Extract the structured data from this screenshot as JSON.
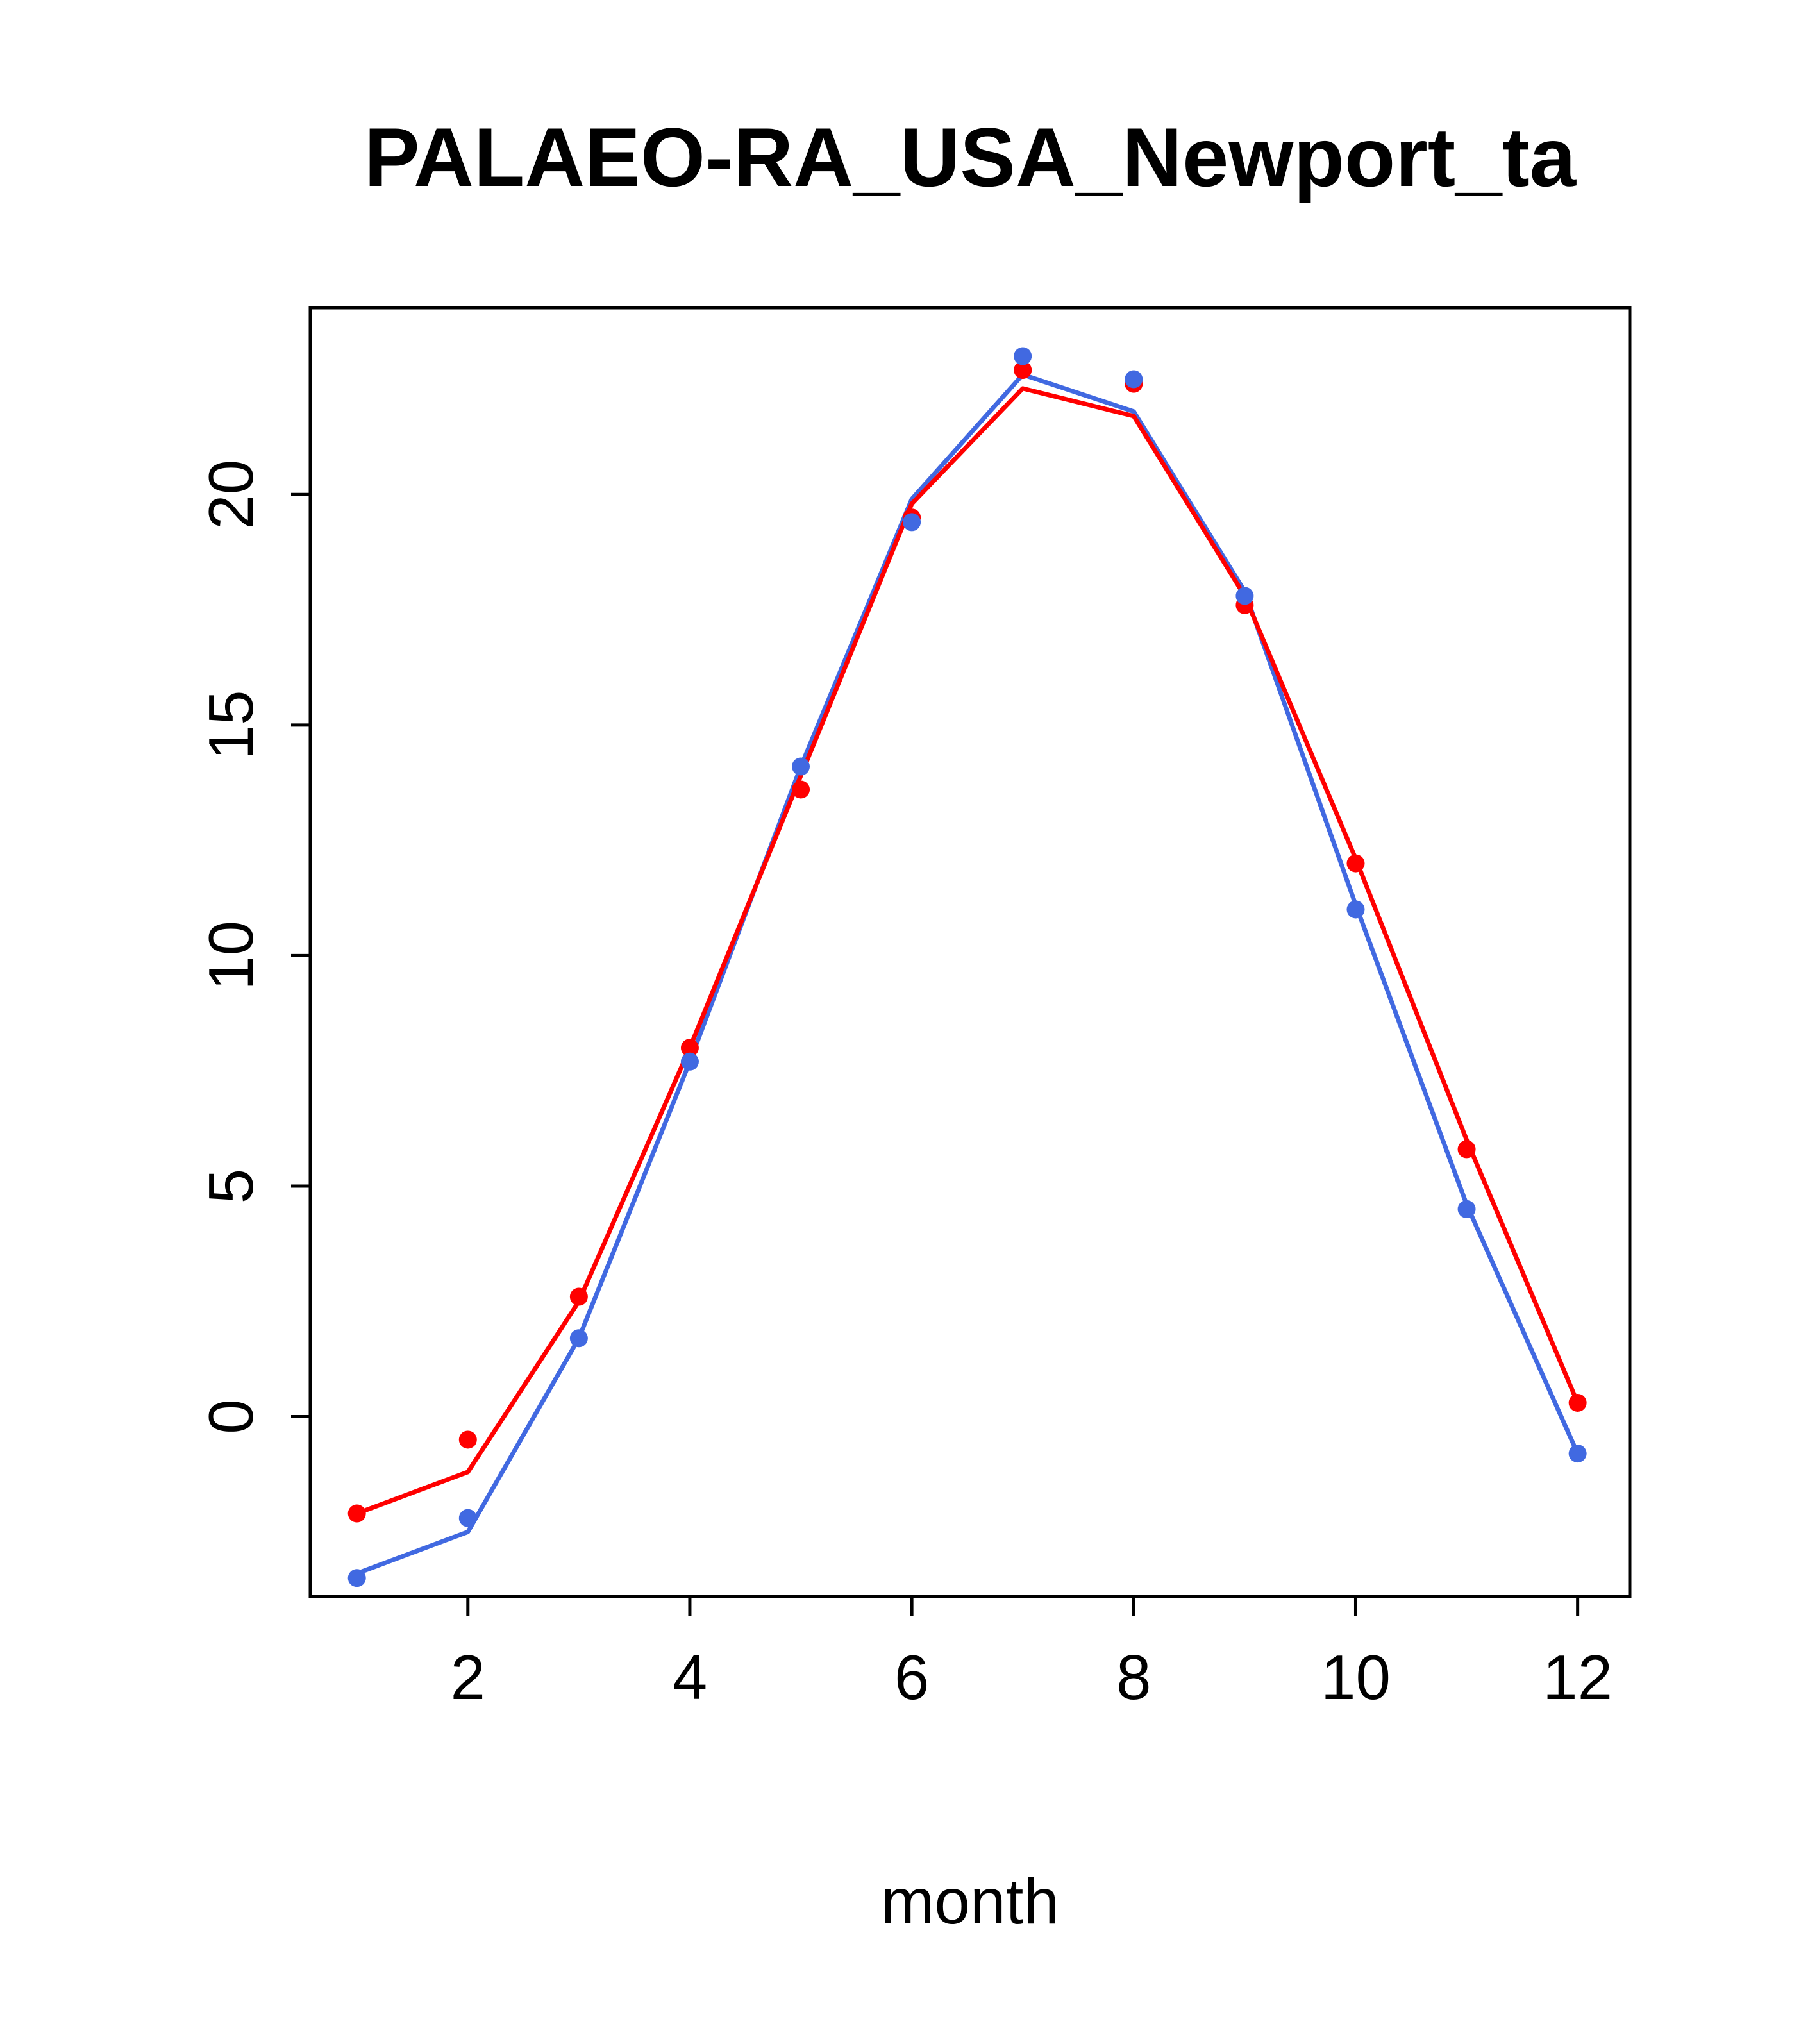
{
  "chart_data": {
    "type": "line",
    "title": "PALAEO-RA_USA_Newport_ta",
    "xlabel": "month",
    "ylabel": "",
    "x": [
      1,
      2,
      3,
      4,
      5,
      6,
      7,
      8,
      9,
      10,
      11,
      12
    ],
    "xlim": [
      0.58,
      12.47
    ],
    "ylim": [
      -3.9,
      24.05
    ],
    "x_ticks": [
      2,
      4,
      6,
      8,
      10,
      12
    ],
    "y_ticks": [
      0,
      5,
      10,
      15,
      20
    ],
    "grid": false,
    "legend": "none",
    "series": [
      {
        "name": "blue-series",
        "color": "#4169E1",
        "marker": "circle",
        "points": [
          -3.5,
          -2.2,
          1.7,
          7.7,
          14.1,
          19.4,
          23.0,
          22.5,
          17.8,
          11.0,
          4.5,
          -0.8
        ],
        "line": [
          -3.4,
          -2.5,
          1.7,
          7.7,
          14.1,
          19.9,
          22.6,
          21.8,
          17.9,
          11.1,
          4.6,
          -0.8
        ]
      },
      {
        "name": "red-series",
        "color": "#FF0000",
        "marker": "circle",
        "points": [
          -2.1,
          -0.5,
          2.6,
          8.0,
          13.6,
          19.5,
          22.7,
          22.4,
          17.6,
          12.0,
          5.8,
          0.3
        ],
        "line": [
          -2.1,
          -1.2,
          2.5,
          8.0,
          13.9,
          19.8,
          22.3,
          21.7,
          17.8,
          12.1,
          6.0,
          0.3
        ]
      }
    ]
  },
  "colors": {
    "axis": "#000000",
    "background": "#FFFFFF"
  }
}
